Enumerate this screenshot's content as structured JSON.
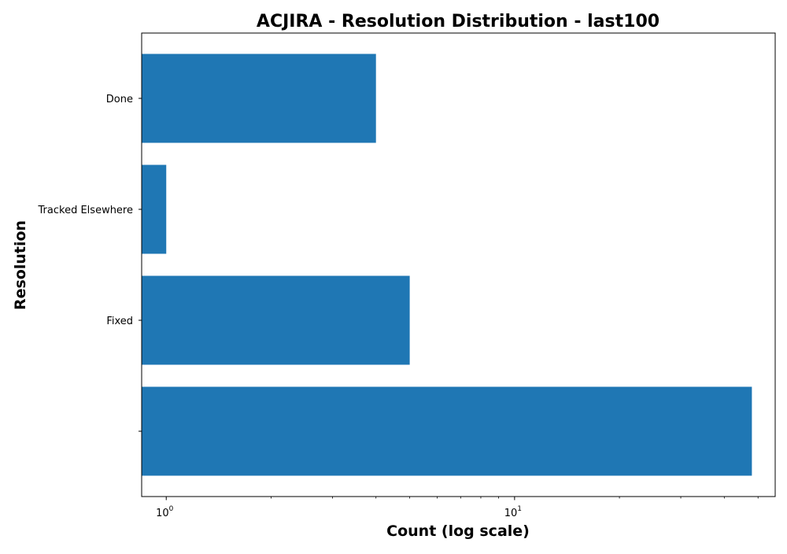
{
  "chart_data": {
    "type": "bar",
    "orientation": "horizontal",
    "title": "ACJIRA - Resolution Distribution - last100",
    "xlabel": "Count (log scale)",
    "ylabel": "Resolution",
    "x_scale": "log",
    "xlim": [
      0.85,
      56
    ],
    "categories": [
      "",
      "Fixed",
      "Tracked Elsewhere",
      "Done"
    ],
    "values": [
      48,
      5,
      1,
      4
    ],
    "x_ticks": [
      {
        "value": 1,
        "base": "10",
        "exponent": "0"
      },
      {
        "value": 10,
        "base": "10",
        "exponent": "1"
      }
    ],
    "bar_color": "#1f77b4",
    "grid": false,
    "legend": "none"
  }
}
